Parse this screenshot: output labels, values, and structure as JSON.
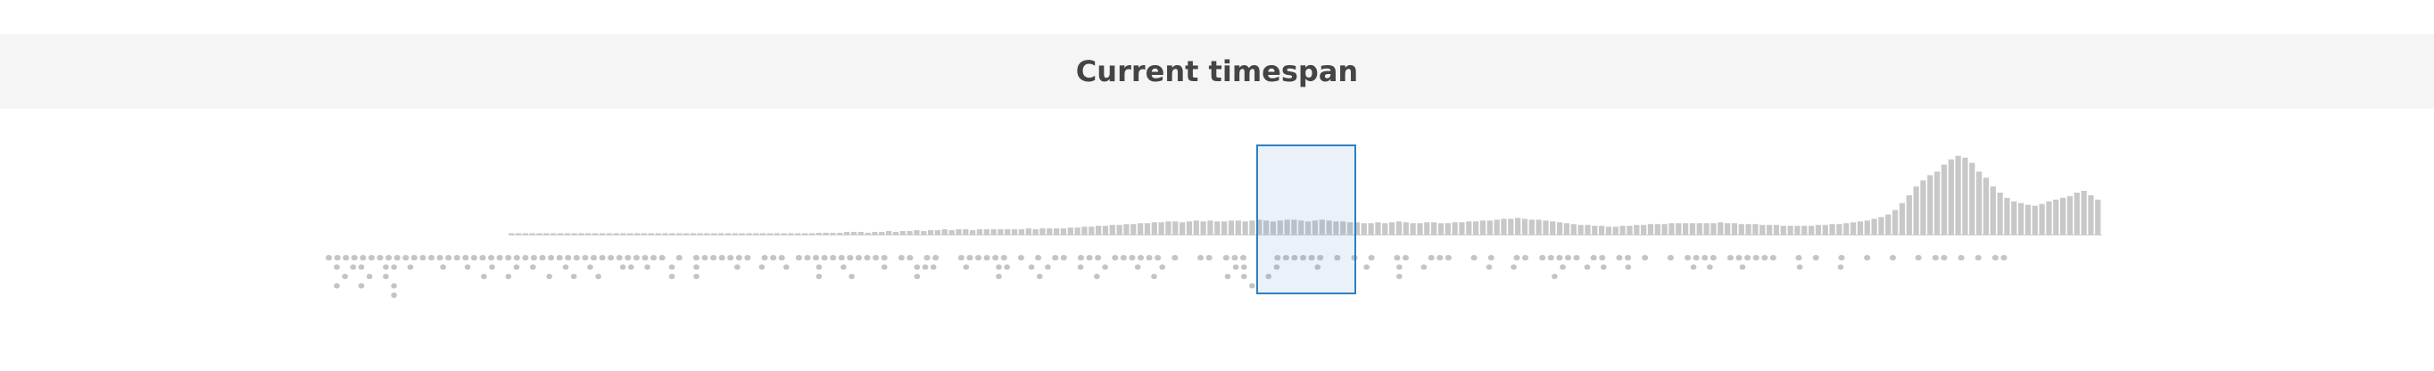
{
  "header": {
    "title": "Current timespan"
  },
  "colors": {
    "bar": "#c8c8c8",
    "dot": "#c4c4c4",
    "selection_border": "#2f7fc1",
    "selection_fill": "rgba(70,130,200,0.11)"
  },
  "timeline": {
    "histogram_levels": [
      0.01,
      0.01,
      0.01,
      0.01,
      0.01,
      0.01,
      0.01,
      0.01,
      0.01,
      0.01,
      0.01,
      0.01,
      0.01,
      0.01,
      0.01,
      0.01,
      0.01,
      0.01,
      0.01,
      0.01,
      0.01,
      0.01,
      0.01,
      0.01,
      0.01,
      0.01,
      0.01,
      0.01,
      0.01,
      0.01,
      0.01,
      0.01,
      0.01,
      0.01,
      0.01,
      0.01,
      0.01,
      0.01,
      0.01,
      0.01,
      0.01,
      0.01,
      0.01,
      0.01,
      0.02,
      0.02,
      0.02,
      0.02,
      0.03,
      0.03,
      0.03,
      0.02,
      0.03,
      0.03,
      0.04,
      0.03,
      0.04,
      0.04,
      0.05,
      0.04,
      0.05,
      0.05,
      0.06,
      0.05,
      0.06,
      0.06,
      0.05,
      0.06,
      0.06,
      0.06,
      0.06,
      0.06,
      0.06,
      0.06,
      0.07,
      0.06,
      0.07,
      0.07,
      0.07,
      0.07,
      0.08,
      0.08,
      0.09,
      0.09,
      0.1,
      0.1,
      0.11,
      0.11,
      0.12,
      0.12,
      0.13,
      0.13,
      0.14,
      0.14,
      0.15,
      0.15,
      0.14,
      0.15,
      0.16,
      0.15,
      0.16,
      0.15,
      0.15,
      0.16,
      0.16,
      0.15,
      0.16,
      0.17,
      0.16,
      0.15,
      0.16,
      0.17,
      0.17,
      0.16,
      0.15,
      0.16,
      0.17,
      0.16,
      0.15,
      0.15,
      0.14,
      0.14,
      0.13,
      0.13,
      0.14,
      0.13,
      0.14,
      0.15,
      0.14,
      0.13,
      0.13,
      0.14,
      0.14,
      0.13,
      0.13,
      0.14,
      0.14,
      0.15,
      0.15,
      0.16,
      0.16,
      0.17,
      0.18,
      0.18,
      0.19,
      0.18,
      0.17,
      0.17,
      0.16,
      0.15,
      0.14,
      0.13,
      0.12,
      0.11,
      0.11,
      0.1,
      0.1,
      0.09,
      0.09,
      0.1,
      0.1,
      0.11,
      0.11,
      0.12,
      0.12,
      0.12,
      0.13,
      0.13,
      0.13,
      0.13,
      0.13,
      0.13,
      0.13,
      0.14,
      0.13,
      0.13,
      0.12,
      0.12,
      0.12,
      0.11,
      0.11,
      0.11,
      0.1,
      0.1,
      0.1,
      0.1,
      0.1,
      0.11,
      0.11,
      0.12,
      0.12,
      0.13,
      0.14,
      0.15,
      0.16,
      0.18,
      0.2,
      0.23,
      0.28,
      0.36,
      0.45,
      0.55,
      0.62,
      0.68,
      0.72,
      0.8,
      0.86,
      0.9,
      0.88,
      0.82,
      0.72,
      0.65,
      0.55,
      0.48,
      0.42,
      0.38,
      0.36,
      0.34,
      0.33,
      0.35,
      0.38,
      0.4,
      0.42,
      0.44,
      0.48,
      0.5,
      0.45,
      0.4
    ],
    "dot_rows": [
      [
        1,
        1,
        1,
        1,
        1,
        1,
        1,
        1,
        1,
        1,
        1,
        1,
        1,
        1,
        1,
        1,
        1,
        1,
        1,
        1,
        1,
        1,
        1,
        1,
        1,
        1,
        1,
        1,
        1,
        1,
        1,
        1,
        1,
        1,
        1,
        1,
        1,
        1,
        1,
        1,
        0,
        1,
        0,
        1,
        1,
        1,
        1,
        1,
        1,
        1,
        0,
        1,
        1,
        1,
        0,
        1,
        1,
        1,
        1,
        1,
        1,
        1,
        1,
        1,
        1,
        1,
        0,
        1,
        1,
        0,
        1,
        1,
        0,
        0,
        1,
        1,
        1,
        1,
        1,
        1,
        0,
        1,
        0,
        1,
        0,
        1,
        1,
        0,
        1,
        1,
        1,
        0,
        1,
        1,
        1,
        1,
        1,
        1,
        0,
        1,
        0,
        0,
        1,
        1,
        0,
        1,
        1,
        1,
        0,
        0,
        0,
        1,
        1,
        1,
        1,
        1,
        1,
        0,
        1,
        0,
        1,
        0,
        1,
        0,
        0,
        1,
        1,
        0,
        0,
        1,
        1,
        1,
        0,
        0,
        1,
        0,
        1,
        0,
        0,
        1,
        1,
        0,
        1,
        1,
        1,
        1,
        1,
        0,
        1,
        1,
        0,
        1,
        1,
        0,
        1,
        0,
        0,
        1,
        0,
        1,
        1,
        1,
        1,
        0,
        1,
        1,
        1,
        1,
        1,
        1,
        0,
        0,
        1,
        0,
        1,
        0,
        0,
        1,
        0,
        0,
        1,
        0,
        0,
        1,
        0,
        0,
        1,
        0,
        1,
        1,
        0,
        1,
        0,
        1,
        0,
        1,
        1
      ],
      [
        0,
        1,
        0,
        1,
        1,
        0,
        0,
        1,
        1,
        0,
        1,
        0,
        0,
        0,
        1,
        0,
        0,
        1,
        0,
        0,
        1,
        0,
        0,
        1,
        0,
        1,
        0,
        0,
        0,
        1,
        0,
        0,
        1,
        0,
        0,
        0,
        1,
        1,
        0,
        1,
        0,
        0,
        1,
        0,
        0,
        1,
        0,
        0,
        0,
        0,
        1,
        0,
        0,
        1,
        0,
        0,
        1,
        0,
        0,
        0,
        1,
        0,
        0,
        1,
        0,
        0,
        0,
        0,
        1,
        0,
        0,
        0,
        1,
        1,
        1,
        0,
        0,
        0,
        1,
        0,
        0,
        0,
        1,
        1,
        0,
        0,
        1,
        0,
        1,
        0,
        0,
        0,
        1,
        0,
        0,
        1,
        0,
        0,
        0,
        1,
        0,
        0,
        1,
        0,
        0,
        0,
        0,
        0,
        0,
        0,
        0,
        1,
        1,
        0,
        0,
        0,
        1,
        0,
        0,
        0,
        0,
        1,
        0,
        0,
        0,
        0,
        0,
        1,
        0,
        0,
        0,
        1,
        0,
        0,
        1,
        0,
        0,
        0,
        0,
        0,
        0,
        0,
        1,
        0,
        0,
        1,
        0,
        0,
        0,
        0,
        0,
        1,
        0,
        0,
        1,
        0,
        1,
        0,
        0,
        1,
        0,
        0,
        0,
        0,
        0,
        0,
        0,
        1,
        0,
        1,
        0,
        0,
        0,
        1,
        0,
        0,
        0,
        0,
        0,
        0,
        1,
        0,
        0,
        0,
        0,
        1,
        0,
        0,
        0,
        0,
        0,
        0,
        0,
        0,
        0,
        0,
        0,
        0,
        0,
        0,
        0,
        0,
        0,
        0,
        0,
        0
      ],
      [
        0,
        0,
        1,
        0,
        0,
        1,
        0,
        1,
        0,
        0,
        0,
        0,
        0,
        0,
        0,
        0,
        0,
        0,
        0,
        1,
        0,
        0,
        1,
        0,
        0,
        0,
        0,
        1,
        0,
        0,
        1,
        0,
        0,
        1,
        0,
        0,
        0,
        0,
        0,
        0,
        0,
        0,
        1,
        0,
        0,
        1,
        0,
        0,
        0,
        0,
        0,
        0,
        0,
        0,
        0,
        0,
        0,
        0,
        0,
        0,
        1,
        0,
        0,
        0,
        1,
        0,
        0,
        0,
        0,
        0,
        0,
        0,
        1,
        0,
        0,
        0,
        0,
        0,
        0,
        0,
        0,
        0,
        1,
        0,
        0,
        0,
        0,
        1,
        0,
        0,
        0,
        0,
        0,
        0,
        1,
        0,
        0,
        0,
        0,
        0,
        0,
        1,
        0,
        0,
        0,
        0,
        0,
        0,
        0,
        0,
        1,
        0,
        1,
        0,
        0,
        1,
        0,
        0,
        0,
        0,
        0,
        0,
        0,
        0,
        0,
        0,
        0,
        0,
        0,
        0,
        0,
        1,
        0,
        0,
        0,
        0,
        0,
        0,
        0,
        0,
        0,
        0,
        0,
        0,
        0,
        0,
        0,
        0,
        0,
        0,
        1,
        0,
        0,
        0,
        0,
        0,
        0,
        0,
        0,
        0,
        0,
        0,
        0,
        0,
        0,
        0,
        0,
        0,
        0,
        0,
        0,
        0,
        0,
        0,
        0,
        0,
        0,
        0,
        0,
        0,
        0,
        0,
        0,
        0,
        0,
        0,
        0,
        0,
        0,
        0,
        0,
        0,
        0,
        0,
        0,
        0,
        0,
        0,
        0,
        0,
        0,
        0,
        0,
        0,
        0,
        0
      ],
      [
        0,
        1,
        0,
        0,
        1,
        0,
        0,
        0,
        1,
        0,
        0,
        0,
        0,
        0,
        0,
        0,
        0,
        0,
        0,
        0,
        0,
        0,
        0,
        0,
        0,
        0,
        0,
        0,
        0,
        0,
        0,
        0,
        0,
        0,
        0,
        0,
        0,
        0,
        0,
        0,
        0,
        0,
        0,
        0,
        0,
        0,
        0,
        0,
        0,
        0,
        0,
        0,
        0,
        0,
        0,
        0,
        0,
        0,
        0,
        0,
        0,
        0,
        0,
        0,
        0,
        0,
        0,
        0,
        0,
        0,
        0,
        0,
        0,
        0,
        0,
        0,
        0,
        0,
        0,
        0,
        0,
        0,
        0,
        0,
        0,
        0,
        0,
        0,
        0,
        0,
        0,
        0,
        0,
        0,
        0,
        0,
        0,
        0,
        0,
        0,
        0,
        0,
        0,
        0,
        0,
        0,
        0,
        0,
        0,
        0,
        0,
        0,
        0,
        1,
        0,
        0,
        0,
        0,
        0,
        0,
        0,
        0,
        0,
        0,
        0,
        0,
        0,
        0,
        0,
        0,
        0,
        0,
        0,
        0,
        0,
        0,
        0,
        0,
        0,
        0,
        0,
        0,
        0,
        0,
        0,
        0,
        0,
        0,
        0,
        0,
        0,
        0,
        0,
        0,
        0,
        0,
        0,
        0,
        0,
        0,
        0,
        0,
        0,
        0,
        0,
        0,
        0,
        0,
        0,
        0,
        0,
        0,
        0,
        0,
        0,
        0,
        0,
        0,
        0,
        0,
        0,
        0,
        0,
        0,
        0,
        0,
        0,
        0,
        0,
        0,
        0,
        0,
        0,
        0,
        0,
        0,
        0,
        0,
        0,
        0,
        0,
        0,
        0,
        0,
        0,
        0
      ],
      [
        0,
        0,
        0,
        0,
        0,
        0,
        0,
        0,
        1,
        0,
        0,
        0,
        0,
        0,
        0,
        0,
        0,
        0,
        0,
        0,
        0,
        0,
        0,
        0,
        0,
        0,
        0,
        0,
        0,
        0,
        0,
        0,
        0,
        0,
        0,
        0,
        0,
        0,
        0,
        0,
        0,
        0,
        0,
        0,
        0,
        0,
        0,
        0,
        0,
        0,
        0,
        0,
        0,
        0,
        0,
        0,
        0,
        0,
        0,
        0,
        0,
        0,
        0,
        0,
        0,
        0,
        0,
        0,
        0,
        0,
        0,
        0,
        0,
        0,
        0,
        0,
        0,
        0,
        0,
        0,
        0,
        0,
        0,
        0,
        0,
        0,
        0,
        0,
        0,
        0,
        0,
        0,
        0,
        0,
        0,
        0,
        0,
        0,
        0,
        0,
        0,
        0,
        0,
        0,
        0,
        0,
        0,
        0,
        0,
        0,
        0,
        0,
        0,
        0,
        0,
        0,
        0,
        0,
        0,
        0,
        0,
        0,
        0,
        0,
        0,
        0,
        0,
        0,
        0,
        0,
        0,
        0,
        0,
        0,
        0,
        0,
        0,
        0,
        0,
        0,
        0,
        0,
        0,
        0,
        0,
        0,
        0,
        0,
        0,
        0,
        0,
        0,
        0,
        0,
        0,
        0,
        0,
        0,
        0,
        0,
        0,
        0,
        0,
        0,
        0,
        0,
        0,
        0,
        0,
        0,
        0,
        0,
        0,
        0,
        0,
        0,
        0,
        0,
        0,
        0,
        0,
        0,
        0,
        0,
        0,
        0,
        0,
        0,
        0,
        0,
        0,
        0,
        0,
        0,
        0,
        0,
        0,
        0,
        0,
        0,
        0,
        0,
        0,
        0,
        0,
        0
      ]
    ]
  }
}
